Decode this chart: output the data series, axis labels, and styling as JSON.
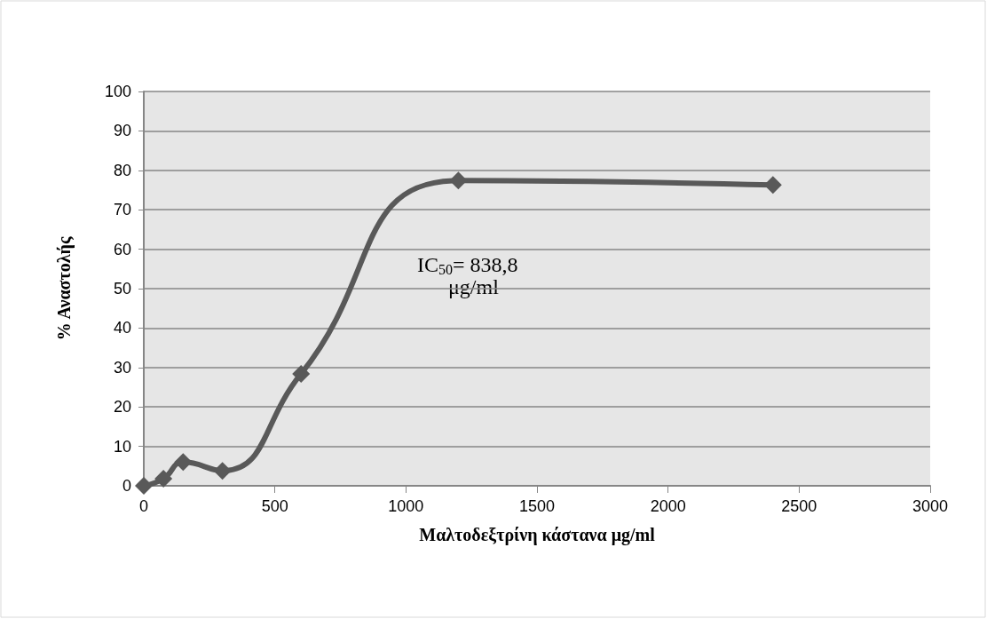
{
  "chart_data": {
    "type": "line",
    "xlabel": "Μαλτοδεξτρίνη κάστανα μg/ml",
    "ylabel": "% Αναστολής",
    "x": [
      0,
      75,
      150,
      300,
      600,
      1200,
      2400
    ],
    "series": [
      {
        "color": "#595959",
        "values": [
          0,
          1.8,
          6,
          3.8,
          28.4,
          77.4,
          76.3
        ]
      }
    ],
    "xlim": [
      0,
      3000
    ],
    "xticks": [
      0,
      500,
      1000,
      1500,
      2000,
      2500,
      3000
    ],
    "ylim": [
      0,
      100
    ],
    "yticks": [
      0,
      10,
      20,
      30,
      40,
      50,
      60,
      70,
      80,
      90,
      100
    ],
    "grid": "y",
    "marker": "diamond",
    "line_style": "solid",
    "annotations": [
      "IC$_{50}$= 838,8 μg/ml"
    ]
  }
}
